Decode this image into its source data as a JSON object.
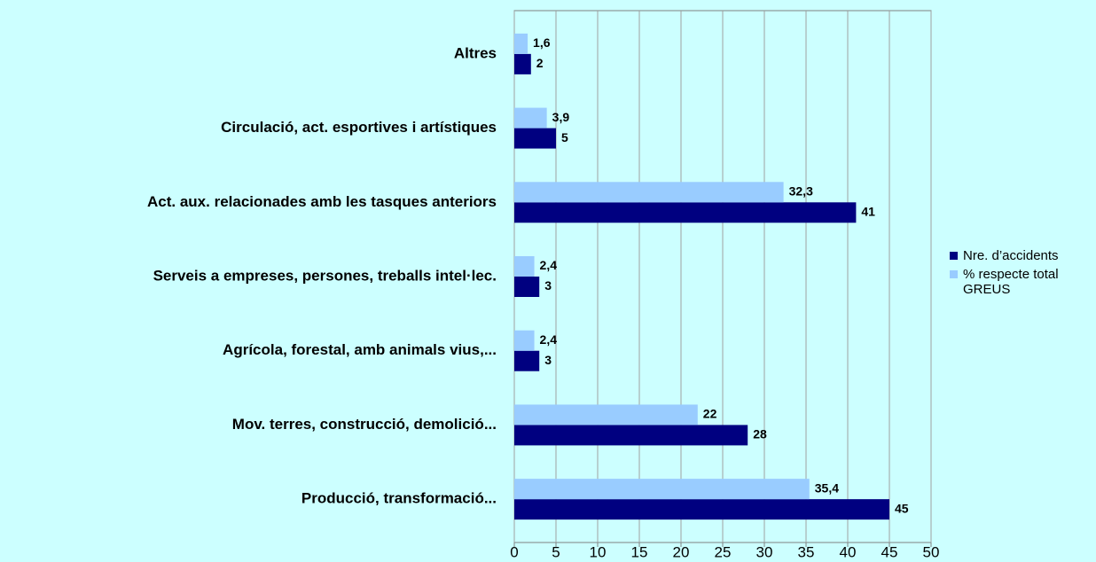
{
  "chart_data": {
    "type": "hbar",
    "categories": [
      "Altres",
      "Circulació, act. esportives i artístiques",
      "Act. aux. relacionades amb les tasques anteriors",
      "Serveis a empreses, persones, treballs intel·lec.",
      "Agrícola, forestal, amb animals vius,...",
      "Mov. terres, construcció, demolició...",
      "Producció, transformació..."
    ],
    "series": [
      {
        "name": "Nre. d’accidents",
        "color": "#000080",
        "values": [
          2,
          5,
          41,
          3,
          3,
          28,
          45
        ]
      },
      {
        "name": "% respecte total GREUS",
        "color": "#99ccff",
        "values": [
          1.6,
          3.9,
          32.3,
          2.4,
          2.4,
          22,
          35.4
        ],
        "value_labels": [
          "1,6",
          "3,9",
          "32,3",
          "2,4",
          "2,4",
          "22",
          "35,4"
        ]
      }
    ],
    "xlim": [
      0,
      50
    ],
    "xticks": [
      0,
      5,
      10,
      15,
      20,
      25,
      30,
      35,
      40,
      45,
      50
    ],
    "grid": true,
    "legend": "right"
  }
}
